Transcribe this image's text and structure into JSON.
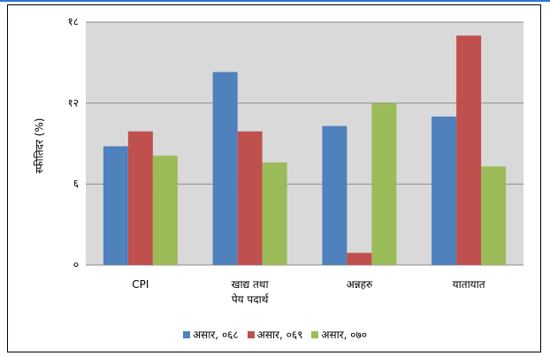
{
  "chart_data": {
    "type": "bar",
    "ylabel": "स्फीतिदर (%)",
    "categories": [
      "CPI",
      "खाद्य तथा\nपेय पदार्थ",
      "अन्नहरु",
      "यातायात"
    ],
    "series": [
      {
        "name": "असार, ०६८",
        "color": "#4f81bd",
        "values": [
          8.8,
          14.3,
          10.3,
          11.0
        ]
      },
      {
        "name": "असार, ०६९",
        "color": "#c0504d",
        "values": [
          9.9,
          9.9,
          0.9,
          17.0
        ]
      },
      {
        "name": "असार, ०७०",
        "color": "#9bbb59",
        "values": [
          8.1,
          7.6,
          12.0,
          7.3
        ]
      }
    ],
    "ylim": [
      0,
      18
    ],
    "yticks": [
      {
        "value": 0,
        "label": "०"
      },
      {
        "value": 6,
        "label": "६"
      },
      {
        "value": 12,
        "label": "१२"
      },
      {
        "value": 18,
        "label": "१८"
      }
    ],
    "grid": true,
    "plot_background": "#d9d9d9",
    "legend": "bottom"
  }
}
